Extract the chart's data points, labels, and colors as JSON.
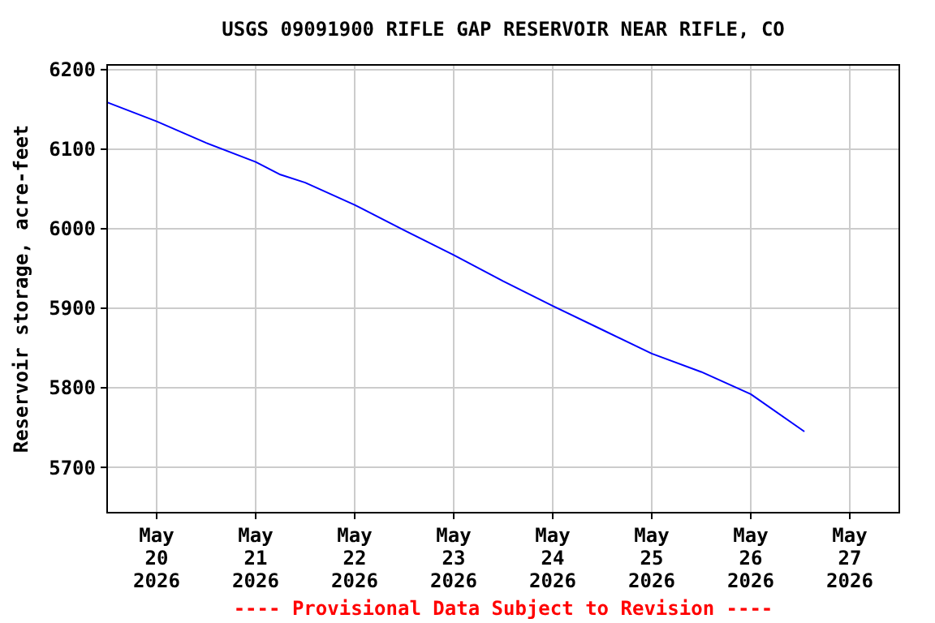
{
  "chart_data": {
    "type": "line",
    "title": "USGS 09091900 RIFLE GAP RESERVOIR NEAR RIFLE, CO",
    "ylabel": "Reservoir storage, acre-feet",
    "annotations": [
      "---- Provisional Data Subject to Revision ----"
    ],
    "x": [
      "2026-05-19T12:00",
      "2026-05-20T00:00",
      "2026-05-20T12:00",
      "2026-05-21T00:00",
      "2026-05-21T06:00",
      "2026-05-21T12:00",
      "2026-05-22T00:00",
      "2026-05-22T12:00",
      "2026-05-23T00:00",
      "2026-05-23T12:00",
      "2026-05-24T00:00",
      "2026-05-24T12:00",
      "2026-05-25T00:00",
      "2026-05-25T12:00",
      "2026-05-26T00:00",
      "2026-05-26T13:00"
    ],
    "series": [
      {
        "color": "#0000ff",
        "values": [
          6159,
          6135,
          6108,
          6084,
          6068,
          6058,
          6030,
          5998,
          5967,
          5934,
          5903,
          5873,
          5843,
          5820,
          5792,
          5745
        ]
      }
    ],
    "xlim": [
      "2026-05-19T12:00",
      "2026-05-27T12:00"
    ],
    "xticks": [
      {
        "value": "2026-05-20",
        "label": "May\n20\n2026"
      },
      {
        "value": "2026-05-21",
        "label": "May\n21\n2026"
      },
      {
        "value": "2026-05-22",
        "label": "May\n22\n2026"
      },
      {
        "value": "2026-05-23",
        "label": "May\n23\n2026"
      },
      {
        "value": "2026-05-24",
        "label": "May\n24\n2026"
      },
      {
        "value": "2026-05-25",
        "label": "May\n25\n2026"
      },
      {
        "value": "2026-05-26",
        "label": "May\n26\n2026"
      },
      {
        "value": "2026-05-27",
        "label": "May\n27\n2026"
      }
    ],
    "ylim": [
      5643,
      6206
    ],
    "yticks": [
      5700,
      5800,
      5900,
      6000,
      6100,
      6200
    ],
    "grid": true,
    "marker": "none",
    "line_style": "solid"
  }
}
